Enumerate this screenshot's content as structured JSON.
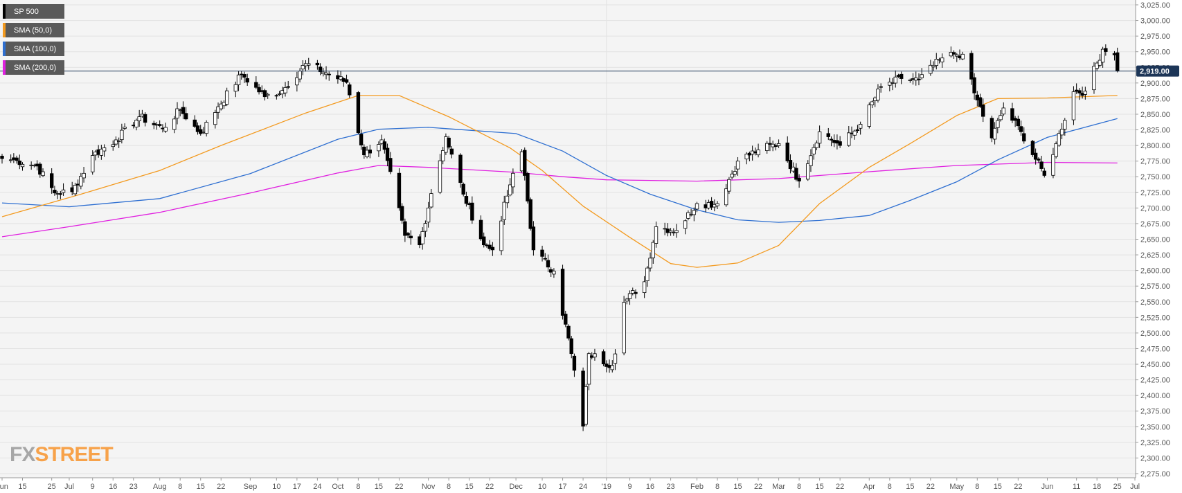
{
  "legend": [
    {
      "label": "SP 500",
      "color": "#000000"
    },
    {
      "label": "SMA (50,0)",
      "color": "#f39a1f"
    },
    {
      "label": "SMA (100,0)",
      "color": "#2e6fd1"
    },
    {
      "label": "SMA (200,0)",
      "color": "#e020e0"
    }
  ],
  "brand": {
    "fx": "FX",
    "street": "STREET"
  },
  "colors": {
    "background": "#f4f4f4",
    "grid": "#e2e2e2",
    "axis": "#999999",
    "sma50": "#f39a1f",
    "sma100": "#2e6fd1",
    "sma200": "#e020e0",
    "price_line": "#1c3557",
    "price_tag_bg": "#1c3557"
  },
  "chart_data": {
    "type": "candlestick",
    "series_name": "SP 500",
    "current_price": 2919,
    "current_price_label": "2,919.00",
    "ylim": [
      2275,
      3025
    ],
    "y_ticks": [
      3025,
      3000,
      2975,
      2950,
      2925,
      2900,
      2875,
      2850,
      2825,
      2800,
      2775,
      2750,
      2725,
      2700,
      2675,
      2650,
      2625,
      2600,
      2575,
      2550,
      2525,
      2500,
      2475,
      2450,
      2425,
      2400,
      2375,
      2350,
      2325,
      2300,
      2275
    ],
    "y_tick_labels": [
      "3,025.00",
      "3,000.00",
      "2,975.00",
      "2,950.00",
      "2,925.00",
      "2,900.00",
      "2,875.00",
      "2,850.00",
      "2,825.00",
      "2,800.00",
      "2,775.00",
      "2,750.00",
      "2,725.00",
      "2,700.00",
      "2,675.00",
      "2,650.00",
      "2,625.00",
      "2,600.00",
      "2,575.00",
      "2,550.00",
      "2,525.00",
      "2,500.00",
      "2,475.00",
      "2,450.00",
      "2,425.00",
      "2,400.00",
      "2,375.00",
      "2,350.00",
      "2,325.00",
      "2,300.00",
      "2,275.00"
    ],
    "x_start": "2018-06-08",
    "x_end": "2019-07-01",
    "x_ticks": [
      {
        "date": "2018-06-08",
        "label": "Jun"
      },
      {
        "date": "2018-06-15",
        "label": "15"
      },
      {
        "date": "2018-06-25",
        "label": "25"
      },
      {
        "date": "2018-07-01",
        "label": "Jul"
      },
      {
        "date": "2018-07-09",
        "label": "9"
      },
      {
        "date": "2018-07-16",
        "label": "16"
      },
      {
        "date": "2018-07-23",
        "label": "23"
      },
      {
        "date": "2018-08-01",
        "label": "Aug"
      },
      {
        "date": "2018-08-08",
        "label": "8"
      },
      {
        "date": "2018-08-15",
        "label": "15"
      },
      {
        "date": "2018-08-22",
        "label": "22"
      },
      {
        "date": "2018-09-01",
        "label": "Sep"
      },
      {
        "date": "2018-09-10",
        "label": "10"
      },
      {
        "date": "2018-09-17",
        "label": "17"
      },
      {
        "date": "2018-09-24",
        "label": "24"
      },
      {
        "date": "2018-10-01",
        "label": "Oct"
      },
      {
        "date": "2018-10-08",
        "label": "8"
      },
      {
        "date": "2018-10-15",
        "label": "15"
      },
      {
        "date": "2018-10-22",
        "label": "22"
      },
      {
        "date": "2018-11-01",
        "label": "Nov"
      },
      {
        "date": "2018-11-08",
        "label": "8"
      },
      {
        "date": "2018-11-15",
        "label": "15"
      },
      {
        "date": "2018-11-22",
        "label": "22"
      },
      {
        "date": "2018-12-01",
        "label": "Dec"
      },
      {
        "date": "2018-12-10",
        "label": "10"
      },
      {
        "date": "2018-12-17",
        "label": "17"
      },
      {
        "date": "2018-12-24",
        "label": "24"
      },
      {
        "date": "2019-01-01",
        "label": "'19"
      },
      {
        "date": "2019-01-09",
        "label": "9"
      },
      {
        "date": "2019-01-16",
        "label": "16"
      },
      {
        "date": "2019-01-23",
        "label": "23"
      },
      {
        "date": "2019-02-01",
        "label": "Feb"
      },
      {
        "date": "2019-02-08",
        "label": "8"
      },
      {
        "date": "2019-02-15",
        "label": "15"
      },
      {
        "date": "2019-02-22",
        "label": "22"
      },
      {
        "date": "2019-03-01",
        "label": "Mar"
      },
      {
        "date": "2019-03-08",
        "label": "8"
      },
      {
        "date": "2019-03-15",
        "label": "15"
      },
      {
        "date": "2019-03-22",
        "label": "22"
      },
      {
        "date": "2019-04-01",
        "label": "Apr"
      },
      {
        "date": "2019-04-08",
        "label": "8"
      },
      {
        "date": "2019-04-15",
        "label": "15"
      },
      {
        "date": "2019-04-22",
        "label": "22"
      },
      {
        "date": "2019-05-01",
        "label": "May"
      },
      {
        "date": "2019-05-08",
        "label": "8"
      },
      {
        "date": "2019-05-15",
        "label": "15"
      },
      {
        "date": "2019-05-22",
        "label": "22"
      },
      {
        "date": "2019-06-01",
        "label": "Jun"
      },
      {
        "date": "2019-06-11",
        "label": "11"
      },
      {
        "date": "2019-06-18",
        "label": "18"
      },
      {
        "date": "2019-06-25",
        "label": "25"
      },
      {
        "date": "2019-07-01",
        "label": "Jul"
      }
    ],
    "key_closes": [
      {
        "date": "2018-06-08",
        "close": 2779
      },
      {
        "date": "2018-06-13",
        "close": 2776
      },
      {
        "date": "2018-06-20",
        "close": 2767
      },
      {
        "date": "2018-06-26",
        "close": 2724
      },
      {
        "date": "2018-07-02",
        "close": 2726
      },
      {
        "date": "2018-07-09",
        "close": 2784
      },
      {
        "date": "2018-07-17",
        "close": 2809
      },
      {
        "date": "2018-07-25",
        "close": 2846
      },
      {
        "date": "2018-08-02",
        "close": 2827
      },
      {
        "date": "2018-08-08",
        "close": 2857
      },
      {
        "date": "2018-08-15",
        "close": 2819
      },
      {
        "date": "2018-08-21",
        "close": 2862
      },
      {
        "date": "2018-08-29",
        "close": 2914
      },
      {
        "date": "2018-09-06",
        "close": 2878
      },
      {
        "date": "2018-09-12",
        "close": 2888
      },
      {
        "date": "2018-09-20",
        "close": 2931
      },
      {
        "date": "2018-09-28",
        "close": 2914
      },
      {
        "date": "2018-10-04",
        "close": 2901
      },
      {
        "date": "2018-10-10",
        "close": 2785
      },
      {
        "date": "2018-10-16",
        "close": 2809
      },
      {
        "date": "2018-10-24",
        "close": 2656
      },
      {
        "date": "2018-10-29",
        "close": 2641
      },
      {
        "date": "2018-11-02",
        "close": 2723
      },
      {
        "date": "2018-11-07",
        "close": 2814
      },
      {
        "date": "2018-11-13",
        "close": 2722
      },
      {
        "date": "2018-11-20",
        "close": 2641
      },
      {
        "date": "2018-11-23",
        "close": 2633
      },
      {
        "date": "2018-11-29",
        "close": 2737
      },
      {
        "date": "2018-12-03",
        "close": 2790
      },
      {
        "date": "2018-12-07",
        "close": 2633
      },
      {
        "date": "2018-12-14",
        "close": 2599
      },
      {
        "date": "2018-12-20",
        "close": 2467
      },
      {
        "date": "2018-12-24",
        "close": 2351
      },
      {
        "date": "2018-12-26",
        "close": 2467
      },
      {
        "date": "2019-01-03",
        "close": 2448
      },
      {
        "date": "2019-01-07",
        "close": 2549
      },
      {
        "date": "2019-01-14",
        "close": 2582
      },
      {
        "date": "2019-01-18",
        "close": 2670
      },
      {
        "date": "2019-01-25",
        "close": 2664
      },
      {
        "date": "2019-02-01",
        "close": 2707
      },
      {
        "date": "2019-02-08",
        "close": 2707
      },
      {
        "date": "2019-02-15",
        "close": 2775
      },
      {
        "date": "2019-02-22",
        "close": 2793
      },
      {
        "date": "2019-03-01",
        "close": 2803
      },
      {
        "date": "2019-03-08",
        "close": 2743
      },
      {
        "date": "2019-03-15",
        "close": 2822
      },
      {
        "date": "2019-03-22",
        "close": 2800
      },
      {
        "date": "2019-03-29",
        "close": 2834
      },
      {
        "date": "2019-04-05",
        "close": 2893
      },
      {
        "date": "2019-04-12",
        "close": 2907
      },
      {
        "date": "2019-04-18",
        "close": 2905
      },
      {
        "date": "2019-04-26",
        "close": 2940
      },
      {
        "date": "2019-04-30",
        "close": 2946
      },
      {
        "date": "2019-05-03",
        "close": 2946
      },
      {
        "date": "2019-05-07",
        "close": 2884
      },
      {
        "date": "2019-05-13",
        "close": 2812
      },
      {
        "date": "2019-05-17",
        "close": 2860
      },
      {
        "date": "2019-05-23",
        "close": 2822
      },
      {
        "date": "2019-05-31",
        "close": 2752
      },
      {
        "date": "2019-06-04",
        "close": 2803
      },
      {
        "date": "2019-06-10",
        "close": 2886
      },
      {
        "date": "2019-06-14",
        "close": 2887
      },
      {
        "date": "2019-06-20",
        "close": 2954
      },
      {
        "date": "2019-06-24",
        "close": 2945
      },
      {
        "date": "2019-06-25",
        "close": 2919
      }
    ],
    "sma_50": [
      {
        "date": "2018-06-08",
        "value": 2686
      },
      {
        "date": "2018-07-05",
        "value": 2722
      },
      {
        "date": "2018-08-01",
        "value": 2760
      },
      {
        "date": "2018-08-22",
        "value": 2800
      },
      {
        "date": "2018-09-20",
        "value": 2852
      },
      {
        "date": "2018-10-08",
        "value": 2880
      },
      {
        "date": "2018-10-22",
        "value": 2880
      },
      {
        "date": "2018-11-08",
        "value": 2846
      },
      {
        "date": "2018-11-29",
        "value": 2796
      },
      {
        "date": "2018-12-10",
        "value": 2760
      },
      {
        "date": "2018-12-24",
        "value": 2703
      },
      {
        "date": "2019-01-09",
        "value": 2653
      },
      {
        "date": "2019-01-23",
        "value": 2611
      },
      {
        "date": "2019-02-01",
        "value": 2605
      },
      {
        "date": "2019-02-15",
        "value": 2612
      },
      {
        "date": "2019-03-01",
        "value": 2640
      },
      {
        "date": "2019-03-15",
        "value": 2707
      },
      {
        "date": "2019-04-01",
        "value": 2765
      },
      {
        "date": "2019-04-15",
        "value": 2803
      },
      {
        "date": "2019-05-01",
        "value": 2848
      },
      {
        "date": "2019-05-15",
        "value": 2875
      },
      {
        "date": "2019-06-01",
        "value": 2876
      },
      {
        "date": "2019-06-25",
        "value": 2880
      }
    ],
    "sma_100": [
      {
        "date": "2018-06-08",
        "value": 2708
      },
      {
        "date": "2018-07-01",
        "value": 2702
      },
      {
        "date": "2018-08-01",
        "value": 2715
      },
      {
        "date": "2018-09-01",
        "value": 2755
      },
      {
        "date": "2018-10-01",
        "value": 2810
      },
      {
        "date": "2018-10-15",
        "value": 2826
      },
      {
        "date": "2018-11-01",
        "value": 2829
      },
      {
        "date": "2018-12-01",
        "value": 2819
      },
      {
        "date": "2018-12-17",
        "value": 2791
      },
      {
        "date": "2019-01-01",
        "value": 2752
      },
      {
        "date": "2019-01-16",
        "value": 2722
      },
      {
        "date": "2019-02-01",
        "value": 2697
      },
      {
        "date": "2019-02-15",
        "value": 2681
      },
      {
        "date": "2019-03-01",
        "value": 2677
      },
      {
        "date": "2019-03-15",
        "value": 2680
      },
      {
        "date": "2019-04-01",
        "value": 2688
      },
      {
        "date": "2019-04-15",
        "value": 2712
      },
      {
        "date": "2019-05-01",
        "value": 2742
      },
      {
        "date": "2019-05-15",
        "value": 2777
      },
      {
        "date": "2019-06-01",
        "value": 2813
      },
      {
        "date": "2019-06-25",
        "value": 2843
      }
    ],
    "sma_200": [
      {
        "date": "2018-06-08",
        "value": 2654
      },
      {
        "date": "2018-07-01",
        "value": 2670
      },
      {
        "date": "2018-08-01",
        "value": 2693
      },
      {
        "date": "2018-09-01",
        "value": 2724
      },
      {
        "date": "2018-10-01",
        "value": 2756
      },
      {
        "date": "2018-10-15",
        "value": 2768
      },
      {
        "date": "2018-11-01",
        "value": 2765
      },
      {
        "date": "2018-12-01",
        "value": 2757
      },
      {
        "date": "2018-12-17",
        "value": 2750
      },
      {
        "date": "2019-01-01",
        "value": 2745
      },
      {
        "date": "2019-02-01",
        "value": 2743
      },
      {
        "date": "2019-03-01",
        "value": 2747
      },
      {
        "date": "2019-04-01",
        "value": 2758
      },
      {
        "date": "2019-05-01",
        "value": 2768
      },
      {
        "date": "2019-06-01",
        "value": 2773
      },
      {
        "date": "2019-06-25",
        "value": 2772
      }
    ]
  }
}
